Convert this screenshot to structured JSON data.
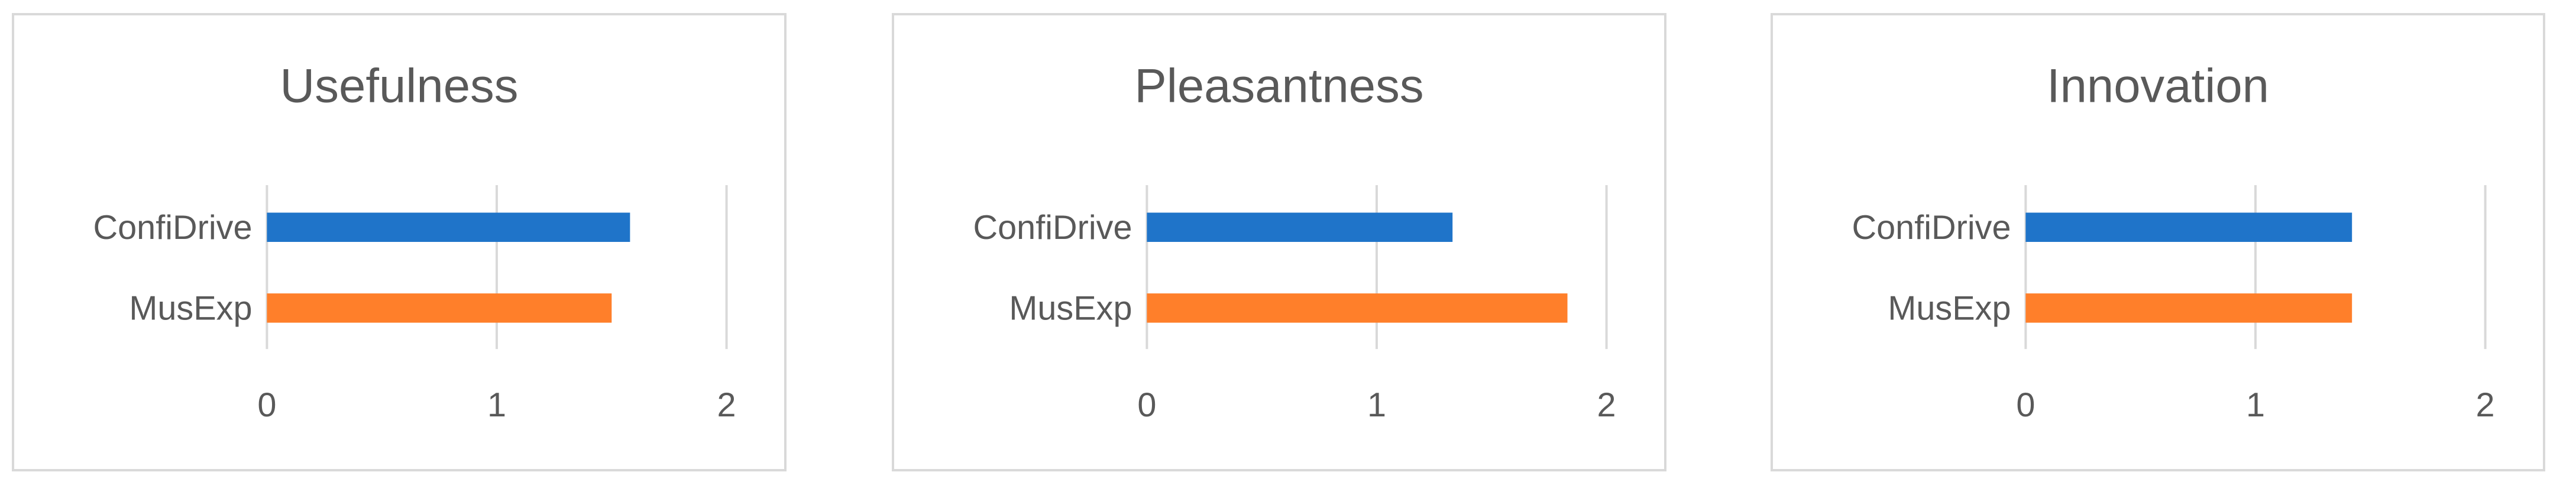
{
  "colors": {
    "ConfiDrive": "#1f74c9",
    "MusExp": "#ff7f2a",
    "grid": "#d9d9d9",
    "text": "#595959"
  },
  "chart_data": [
    {
      "type": "bar",
      "orientation": "horizontal",
      "title": "Usefulness",
      "categories": [
        "ConfiDrive",
        "MusExp"
      ],
      "values": [
        1.58,
        1.5
      ],
      "xlim": [
        0,
        2
      ],
      "xticks": [
        "0",
        "1",
        "2"
      ],
      "grid": "vertical"
    },
    {
      "type": "bar",
      "orientation": "horizontal",
      "title": "Pleasantness",
      "categories": [
        "ConfiDrive",
        "MusExp"
      ],
      "values": [
        1.33,
        1.83
      ],
      "xlim": [
        0,
        2
      ],
      "xticks": [
        "0",
        "1",
        "2"
      ],
      "grid": "vertical"
    },
    {
      "type": "bar",
      "orientation": "horizontal",
      "title": "Innovation",
      "categories": [
        "ConfiDrive",
        "MusExp"
      ],
      "values": [
        1.42,
        1.42
      ],
      "xlim": [
        0,
        2
      ],
      "xticks": [
        "0",
        "1",
        "2"
      ],
      "grid": "vertical"
    }
  ]
}
